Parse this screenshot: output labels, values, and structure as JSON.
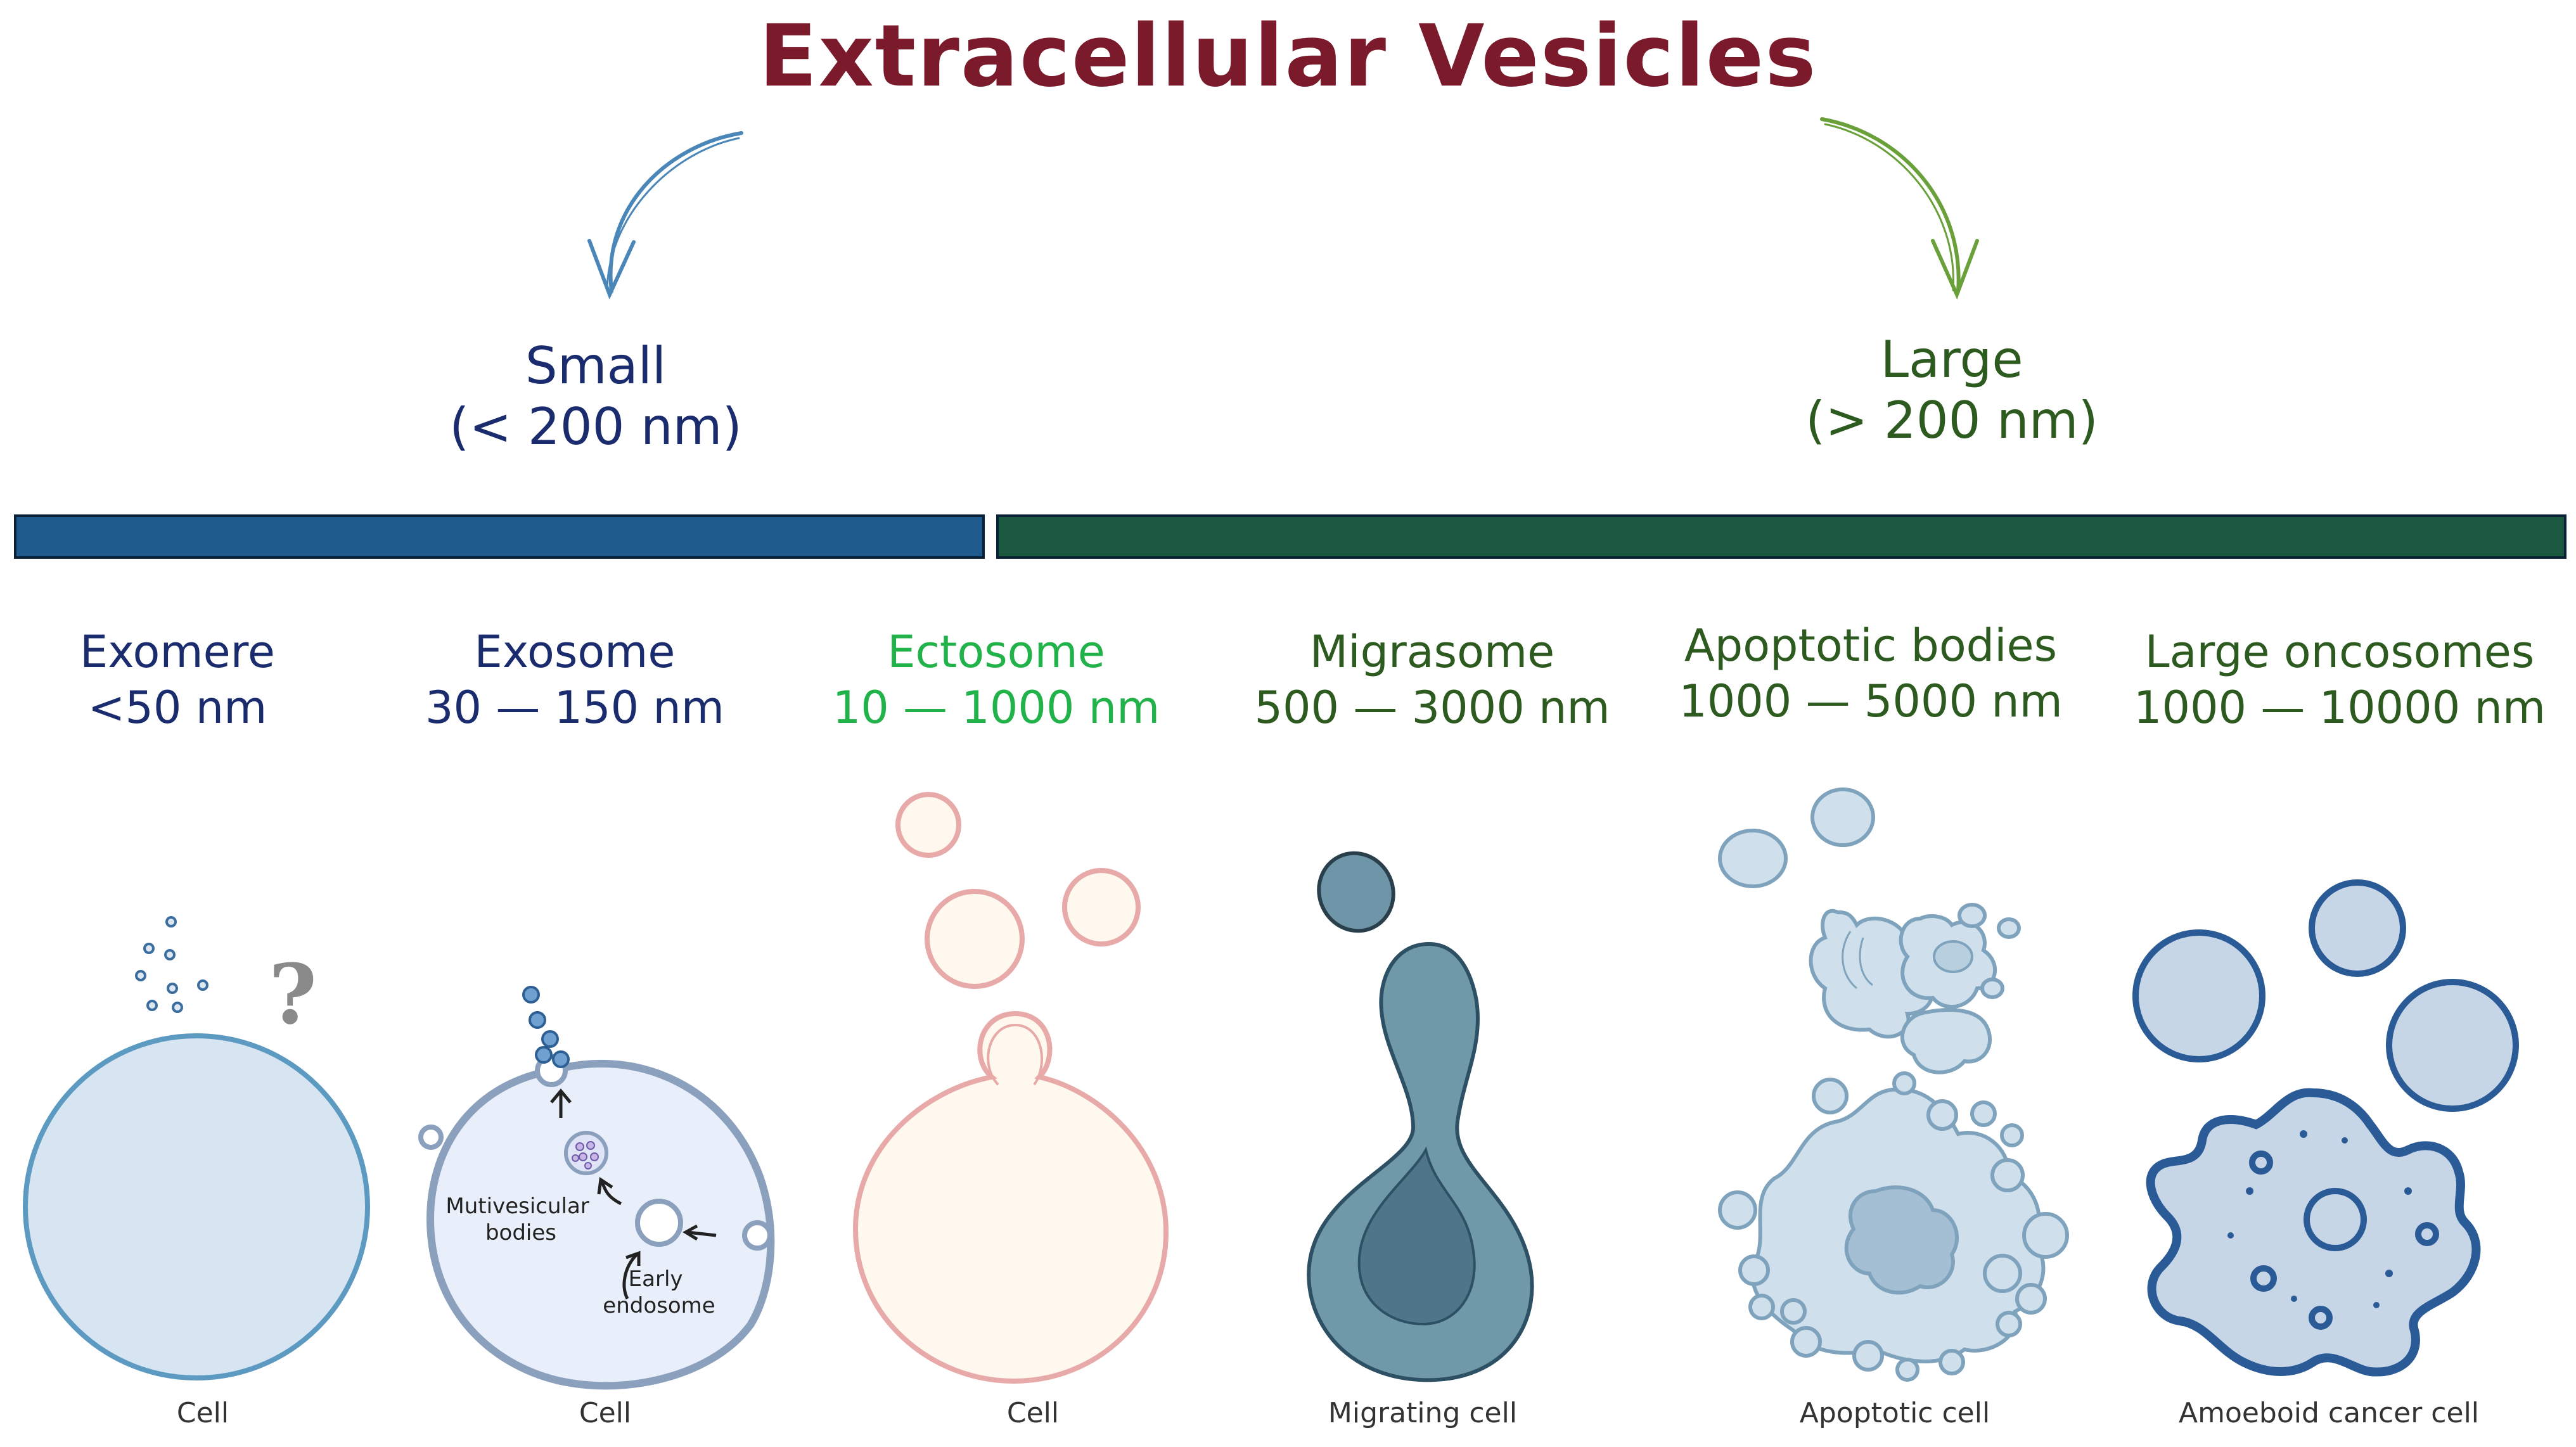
{
  "title": "Extracellular Vesicles",
  "categories": {
    "small": {
      "label": "Small",
      "range": "(< 200 nm)",
      "color": "#1f5a8c"
    },
    "large": {
      "label": "Large",
      "range": "(> 200 nm)",
      "color": "#1b5a40"
    }
  },
  "types": [
    {
      "name": "Exomere",
      "size": "<50 nm",
      "color": "#1a2c6e",
      "caption": "Cell"
    },
    {
      "name": "Exosome",
      "size": "30 — 150 nm",
      "color": "#1a2c6e",
      "caption": "Cell"
    },
    {
      "name": "Ectosome",
      "size": "10 — 1000 nm",
      "color": "#22b24a",
      "caption": "Cell"
    },
    {
      "name": "Migrasome",
      "size": "500 — 3000 nm",
      "color": "#2d5a1f",
      "caption": "Migrating cell"
    },
    {
      "name": "Apoptotic bodies",
      "size": "1000 — 5000 nm",
      "color": "#2d5a1f",
      "caption": "Apoptotic cell"
    },
    {
      "name": "Large oncosomes",
      "size": "1000 — 10000 nm",
      "color": "#2d5a1f",
      "caption": "Amoeboid cancer cell"
    }
  ],
  "exosome_labels": {
    "mvb": "Mutivesicular\nbodies",
    "endosome": "Early\nendosome"
  },
  "exomere_mark": "?"
}
